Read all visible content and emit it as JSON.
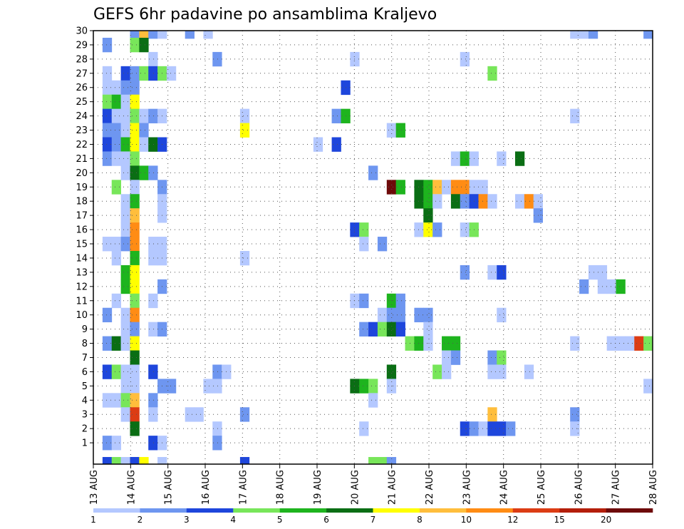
{
  "chart_data": {
    "type": "heatmap",
    "title": "GEFS 6hr padavine po ansamblima Kraljevo",
    "xlabel": "",
    "ylabel": "",
    "x_tick_labels": [
      "13 AUG",
      "14 AUG",
      "15 AUG",
      "16 AUG",
      "17 AUG",
      "18 AUG",
      "19 AUG",
      "20 AUG",
      "21 AUG",
      "22 AUG",
      "23 AUG",
      "24 AUG",
      "25 AUG",
      "26 AUG",
      "27 AUG",
      "28 AUG"
    ],
    "y_tick_labels": [
      "1",
      "2",
      "3",
      "4",
      "5",
      "6",
      "7",
      "8",
      "9",
      "10",
      "11",
      "12",
      "13",
      "14",
      "15",
      "16",
      "17",
      "18",
      "19",
      "20",
      "21",
      "22",
      "23",
      "24",
      "25",
      "26",
      "27",
      "28",
      "29",
      "30"
    ],
    "time_steps": 61,
    "members": 30,
    "grid": true,
    "colorbar": {
      "labels": [
        "1",
        "2",
        "3",
        "4",
        "5",
        "6",
        "7",
        "8",
        "10",
        "12",
        "15",
        "20"
      ],
      "colors": [
        "#b4c8ff",
        "#6e96f0",
        "#1e46dc",
        "#78e65a",
        "#1eb41e",
        "#0a6e14",
        "#ffff00",
        "#ffbe3c",
        "#ff8c14",
        "#dc3c14",
        "#b41e0a",
        "#6e0a0a"
      ]
    },
    "cells": [
      [
        30,
        4,
        2
      ],
      [
        30,
        5,
        8
      ],
      [
        30,
        6,
        2
      ],
      [
        30,
        7,
        1
      ],
      [
        30,
        10,
        2
      ],
      [
        30,
        12,
        1
      ],
      [
        30,
        52,
        1
      ],
      [
        30,
        53,
        1
      ],
      [
        30,
        54,
        2
      ],
      [
        30,
        60,
        2
      ],
      [
        29,
        1,
        2
      ],
      [
        29,
        4,
        4
      ],
      [
        29,
        5,
        6
      ],
      [
        28,
        6,
        1
      ],
      [
        28,
        13,
        2
      ],
      [
        28,
        28,
        1
      ],
      [
        28,
        40,
        1
      ],
      [
        27,
        1,
        1
      ],
      [
        27,
        3,
        3
      ],
      [
        27,
        4,
        2
      ],
      [
        27,
        5,
        4
      ],
      [
        27,
        6,
        3
      ],
      [
        27,
        7,
        4
      ],
      [
        27,
        8,
        1
      ],
      [
        27,
        43,
        4
      ],
      [
        26,
        1,
        1
      ],
      [
        26,
        2,
        1
      ],
      [
        26,
        3,
        2
      ],
      [
        26,
        4,
        2
      ],
      [
        26,
        27,
        3
      ],
      [
        25,
        1,
        4
      ],
      [
        25,
        2,
        5
      ],
      [
        25,
        3,
        1
      ],
      [
        25,
        4,
        7
      ],
      [
        24,
        1,
        3
      ],
      [
        24,
        2,
        1
      ],
      [
        24,
        3,
        1
      ],
      [
        24,
        4,
        4
      ],
      [
        24,
        5,
        1
      ],
      [
        24,
        6,
        2
      ],
      [
        24,
        7,
        1
      ],
      [
        24,
        16,
        1
      ],
      [
        24,
        26,
        2
      ],
      [
        24,
        27,
        5
      ],
      [
        24,
        52,
        1
      ],
      [
        23,
        1,
        2
      ],
      [
        23,
        2,
        2
      ],
      [
        23,
        3,
        1
      ],
      [
        23,
        4,
        7
      ],
      [
        23,
        5,
        2
      ],
      [
        23,
        16,
        7
      ],
      [
        23,
        32,
        1
      ],
      [
        23,
        33,
        5
      ],
      [
        22,
        1,
        3
      ],
      [
        22,
        2,
        2
      ],
      [
        22,
        3,
        5
      ],
      [
        22,
        4,
        7
      ],
      [
        22,
        5,
        1
      ],
      [
        22,
        6,
        6
      ],
      [
        22,
        7,
        3
      ],
      [
        22,
        24,
        1
      ],
      [
        22,
        26,
        3
      ],
      [
        21,
        1,
        2
      ],
      [
        21,
        2,
        1
      ],
      [
        21,
        3,
        1
      ],
      [
        21,
        4,
        4
      ],
      [
        21,
        39,
        1
      ],
      [
        21,
        40,
        5
      ],
      [
        21,
        41,
        1
      ],
      [
        21,
        44,
        1
      ],
      [
        21,
        46,
        6
      ],
      [
        20,
        3,
        1
      ],
      [
        20,
        4,
        6
      ],
      [
        20,
        5,
        5
      ],
      [
        20,
        6,
        2
      ],
      [
        20,
        30,
        2
      ],
      [
        19,
        2,
        4
      ],
      [
        19,
        4,
        1
      ],
      [
        19,
        7,
        2
      ],
      [
        19,
        32,
        12
      ],
      [
        19,
        33,
        5
      ],
      [
        19,
        35,
        6
      ],
      [
        19,
        36,
        5
      ],
      [
        19,
        37,
        8
      ],
      [
        19,
        38,
        1
      ],
      [
        19,
        39,
        9
      ],
      [
        19,
        40,
        9
      ],
      [
        19,
        41,
        1
      ],
      [
        19,
        42,
        1
      ],
      [
        18,
        3,
        1
      ],
      [
        18,
        4,
        5
      ],
      [
        18,
        7,
        1
      ],
      [
        18,
        35,
        6
      ],
      [
        18,
        36,
        5
      ],
      [
        18,
        37,
        1
      ],
      [
        18,
        39,
        6
      ],
      [
        18,
        40,
        2
      ],
      [
        18,
        41,
        3
      ],
      [
        18,
        42,
        9
      ],
      [
        18,
        43,
        1
      ],
      [
        18,
        46,
        1
      ],
      [
        18,
        47,
        9
      ],
      [
        18,
        48,
        1
      ],
      [
        17,
        3,
        1
      ],
      [
        17,
        4,
        8
      ],
      [
        17,
        7,
        1
      ],
      [
        17,
        36,
        6
      ],
      [
        17,
        48,
        2
      ],
      [
        16,
        3,
        1
      ],
      [
        16,
        4,
        9
      ],
      [
        16,
        28,
        3
      ],
      [
        16,
        29,
        4
      ],
      [
        16,
        35,
        1
      ],
      [
        16,
        36,
        7
      ],
      [
        16,
        37,
        2
      ],
      [
        16,
        40,
        1
      ],
      [
        16,
        41,
        4
      ],
      [
        15,
        1,
        1
      ],
      [
        15,
        2,
        1
      ],
      [
        15,
        3,
        2
      ],
      [
        15,
        4,
        9
      ],
      [
        15,
        6,
        1
      ],
      [
        15,
        7,
        1
      ],
      [
        15,
        29,
        1
      ],
      [
        15,
        31,
        2
      ],
      [
        14,
        2,
        1
      ],
      [
        14,
        4,
        5
      ],
      [
        14,
        6,
        1
      ],
      [
        14,
        7,
        1
      ],
      [
        14,
        16,
        1
      ],
      [
        13,
        3,
        5
      ],
      [
        13,
        4,
        7
      ],
      [
        13,
        40,
        2
      ],
      [
        13,
        43,
        1
      ],
      [
        13,
        44,
        3
      ],
      [
        13,
        54,
        1
      ],
      [
        13,
        55,
        1
      ],
      [
        12,
        3,
        5
      ],
      [
        12,
        4,
        7
      ],
      [
        12,
        7,
        2
      ],
      [
        12,
        53,
        2
      ],
      [
        12,
        55,
        1
      ],
      [
        12,
        56,
        1
      ],
      [
        12,
        57,
        5
      ],
      [
        11,
        2,
        1
      ],
      [
        11,
        4,
        4
      ],
      [
        11,
        6,
        1
      ],
      [
        11,
        28,
        1
      ],
      [
        11,
        29,
        2
      ],
      [
        11,
        32,
        5
      ],
      [
        11,
        33,
        2
      ],
      [
        10,
        1,
        2
      ],
      [
        10,
        3,
        1
      ],
      [
        10,
        4,
        9
      ],
      [
        10,
        31,
        1
      ],
      [
        10,
        32,
        2
      ],
      [
        10,
        33,
        2
      ],
      [
        10,
        35,
        2
      ],
      [
        10,
        36,
        2
      ],
      [
        10,
        44,
        1
      ],
      [
        9,
        3,
        1
      ],
      [
        9,
        4,
        2
      ],
      [
        9,
        6,
        1
      ],
      [
        9,
        7,
        2
      ],
      [
        9,
        29,
        2
      ],
      [
        9,
        30,
        3
      ],
      [
        9,
        31,
        4
      ],
      [
        9,
        32,
        6
      ],
      [
        9,
        33,
        3
      ],
      [
        9,
        36,
        1
      ],
      [
        8,
        1,
        2
      ],
      [
        8,
        2,
        6
      ],
      [
        8,
        3,
        1
      ],
      [
        8,
        4,
        7
      ],
      [
        8,
        34,
        4
      ],
      [
        8,
        35,
        5
      ],
      [
        8,
        36,
        1
      ],
      [
        8,
        38,
        5
      ],
      [
        8,
        39,
        5
      ],
      [
        8,
        52,
        1
      ],
      [
        8,
        56,
        1
      ],
      [
        8,
        57,
        1
      ],
      [
        8,
        58,
        1
      ],
      [
        8,
        59,
        10
      ],
      [
        8,
        60,
        4
      ],
      [
        7,
        4,
        6
      ],
      [
        7,
        38,
        1
      ],
      [
        7,
        39,
        2
      ],
      [
        7,
        43,
        2
      ],
      [
        7,
        44,
        4
      ],
      [
        6,
        1,
        3
      ],
      [
        6,
        2,
        4
      ],
      [
        6,
        3,
        1
      ],
      [
        6,
        4,
        1
      ],
      [
        6,
        6,
        3
      ],
      [
        6,
        13,
        2
      ],
      [
        6,
        14,
        1
      ],
      [
        6,
        32,
        6
      ],
      [
        6,
        37,
        4
      ],
      [
        6,
        38,
        1
      ],
      [
        6,
        43,
        1
      ],
      [
        6,
        44,
        1
      ],
      [
        6,
        47,
        1
      ],
      [
        5,
        3,
        1
      ],
      [
        5,
        4,
        1
      ],
      [
        5,
        7,
        2
      ],
      [
        5,
        8,
        2
      ],
      [
        5,
        12,
        1
      ],
      [
        5,
        13,
        1
      ],
      [
        5,
        28,
        6
      ],
      [
        5,
        29,
        5
      ],
      [
        5,
        30,
        4
      ],
      [
        5,
        32,
        1
      ],
      [
        5,
        60,
        1
      ],
      [
        4,
        1,
        1
      ],
      [
        4,
        2,
        1
      ],
      [
        4,
        3,
        4
      ],
      [
        4,
        4,
        8
      ],
      [
        4,
        6,
        2
      ],
      [
        4,
        30,
        1
      ],
      [
        3,
        3,
        1
      ],
      [
        3,
        4,
        10
      ],
      [
        3,
        6,
        1
      ],
      [
        3,
        10,
        1
      ],
      [
        3,
        11,
        1
      ],
      [
        3,
        16,
        2
      ],
      [
        3,
        43,
        8
      ],
      [
        3,
        52,
        2
      ],
      [
        2,
        4,
        6
      ],
      [
        2,
        13,
        1
      ],
      [
        2,
        29,
        1
      ],
      [
        2,
        40,
        3
      ],
      [
        2,
        41,
        2
      ],
      [
        2,
        42,
        1
      ],
      [
        2,
        43,
        3
      ],
      [
        2,
        44,
        3
      ],
      [
        2,
        45,
        2
      ],
      [
        2,
        52,
        1
      ],
      [
        1,
        1,
        2
      ],
      [
        1,
        2,
        1
      ],
      [
        1,
        6,
        3
      ],
      [
        1,
        7,
        1
      ],
      [
        1,
        13,
        2
      ],
      [
        0,
        1,
        3
      ],
      [
        0,
        2,
        4
      ],
      [
        0,
        4,
        3
      ]
    ],
    "cells_bottom": [
      [
        0,
        3,
        1
      ],
      [
        0,
        4,
        3
      ],
      [
        0,
        5,
        7
      ],
      [
        0,
        7,
        1
      ],
      [
        0,
        16,
        3
      ],
      [
        0,
        30,
        4
      ],
      [
        0,
        31,
        4
      ],
      [
        0,
        32,
        2
      ]
    ]
  }
}
